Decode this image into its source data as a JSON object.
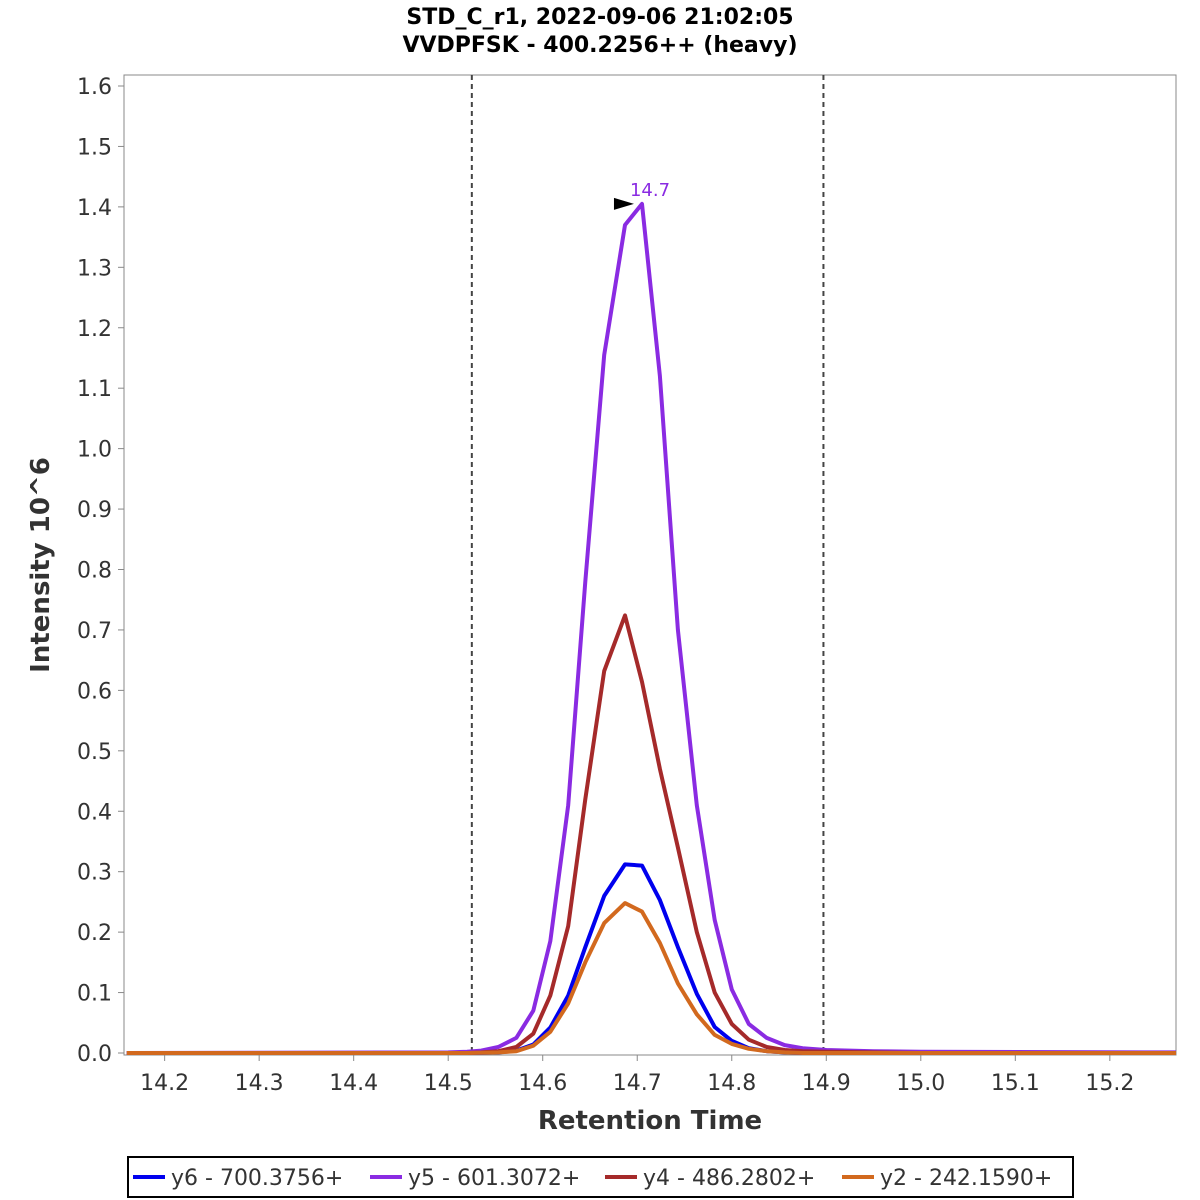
{
  "chart_data": {
    "type": "line",
    "title": "STD_C_r1, 2022-09-06 21:02:05",
    "subtitle": "VVDPFSK - 400.2256++ (heavy)",
    "xlabel": "Retention Time",
    "ylabel": "Intensity 10^6",
    "xlim": [
      14.157,
      15.27
    ],
    "ylim": [
      0.0,
      1.62
    ],
    "x_ticks": [
      "14.2",
      "14.3",
      "14.4",
      "14.5",
      "14.6",
      "14.7",
      "14.8",
      "14.9",
      "15.0",
      "15.1",
      "15.2"
    ],
    "y_ticks": [
      "0.0",
      "0.1",
      "0.2",
      "0.3",
      "0.4",
      "0.5",
      "0.6",
      "0.7",
      "0.8",
      "0.9",
      "1.0",
      "1.1",
      "1.2",
      "1.3",
      "1.4",
      "1.5",
      "1.6"
    ],
    "grid": false,
    "legend_position": "bottom",
    "integration_boundaries": [
      14.525,
      14.897
    ],
    "x": [
      14.16,
      14.5,
      14.52,
      14.535,
      14.553,
      14.572,
      14.59,
      14.608,
      14.627,
      14.645,
      14.665,
      14.687,
      14.705,
      14.724,
      14.743,
      14.763,
      14.782,
      14.8,
      14.818,
      14.837,
      14.856,
      14.875,
      14.9,
      14.95,
      15.0,
      15.27
    ],
    "series": [
      {
        "name": "y6 - 700.3756+",
        "color": "#0000ee",
        "values": [
          0.0,
          0.0,
          0.0,
          0.0005,
          0.001,
          0.004,
          0.014,
          0.042,
          0.095,
          0.175,
          0.26,
          0.312,
          0.31,
          0.253,
          0.175,
          0.098,
          0.043,
          0.02,
          0.008,
          0.003,
          0.001,
          0.0,
          0.0,
          0.0,
          0.0,
          0.0
        ]
      },
      {
        "name": "y5 - 601.3072+",
        "color": "#8a2be2",
        "values": [
          0.0,
          0.001,
          0.002,
          0.004,
          0.01,
          0.025,
          0.07,
          0.185,
          0.41,
          0.78,
          1.155,
          1.37,
          1.405,
          1.12,
          0.7,
          0.41,
          0.22,
          0.105,
          0.048,
          0.025,
          0.013,
          0.008,
          0.005,
          0.003,
          0.002,
          0.001
        ]
      },
      {
        "name": "y4 - 486.2802+",
        "color": "#a52a2a",
        "values": [
          0.0,
          0.0,
          0.0,
          0.001,
          0.003,
          0.01,
          0.032,
          0.095,
          0.21,
          0.42,
          0.632,
          0.724,
          0.614,
          0.47,
          0.34,
          0.2,
          0.1,
          0.048,
          0.022,
          0.01,
          0.005,
          0.003,
          0.002,
          0.001,
          0.0,
          0.0
        ]
      },
      {
        "name": "y2 - 242.1590+",
        "color": "#d2691e",
        "values": [
          0.0,
          0.0,
          0.0,
          0.0005,
          0.001,
          0.003,
          0.012,
          0.035,
          0.082,
          0.15,
          0.215,
          0.248,
          0.234,
          0.182,
          0.115,
          0.064,
          0.03,
          0.015,
          0.007,
          0.003,
          0.001,
          0.0,
          0.0,
          0.0,
          0.0,
          0.0
        ]
      }
    ],
    "annotations": [
      {
        "series": "y5 - 601.3072+",
        "x": 14.705,
        "y": 1.405,
        "text": "14.7",
        "color": "#8a2be2"
      }
    ]
  }
}
